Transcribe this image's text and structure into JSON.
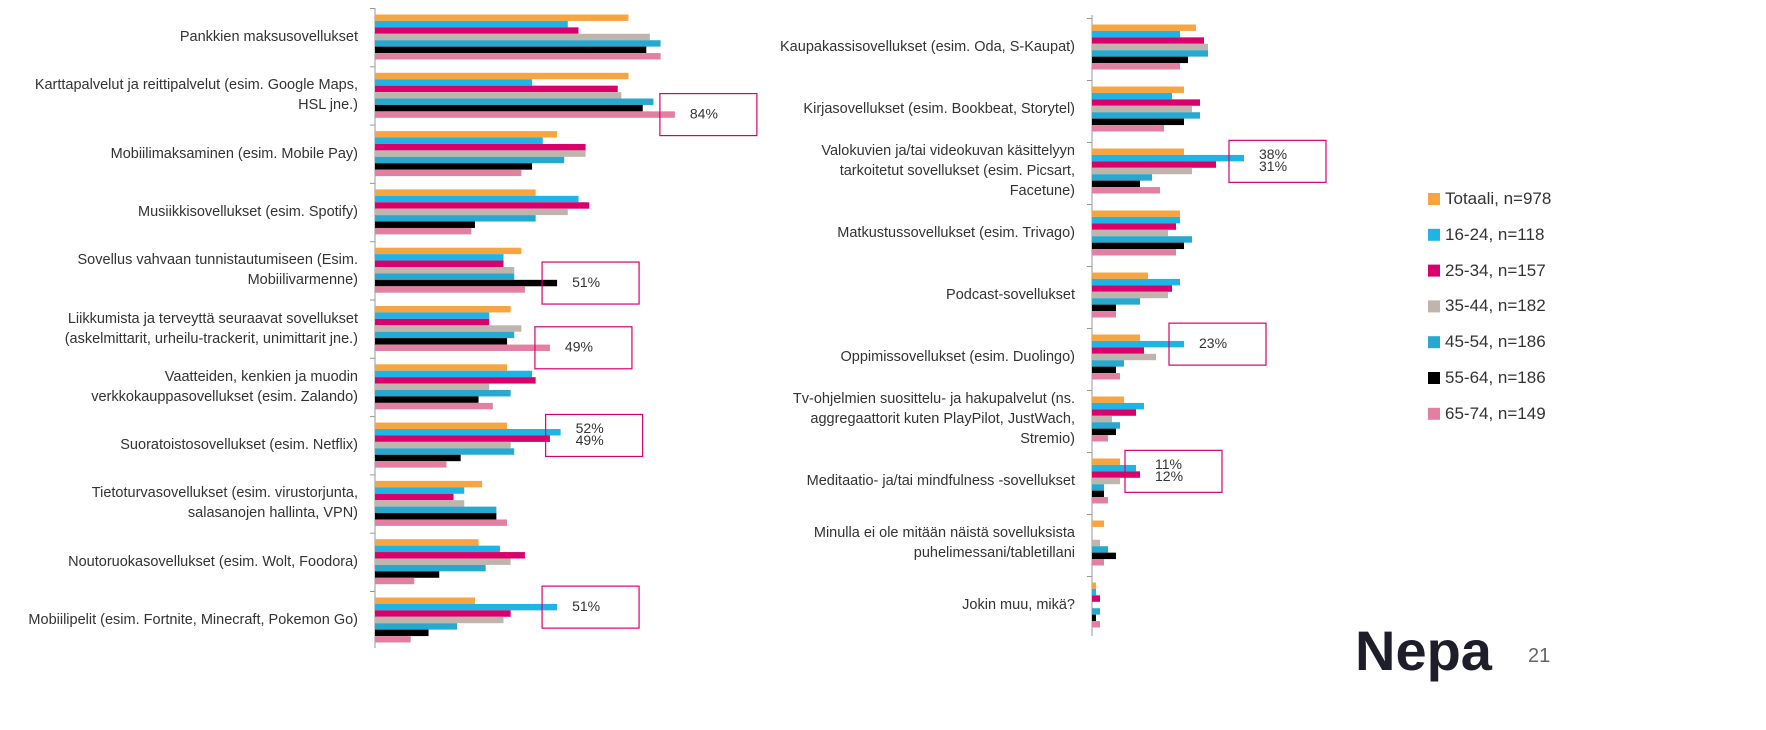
{
  "chart_data": [
    {
      "type": "bar",
      "orientation": "horizontal",
      "xlim": [
        0,
        100
      ],
      "categories": [
        "Pankkien maksusovellukset",
        "Karttapalvelut ja reittipalvelut (esim. Google Maps,\nHSL jne.)",
        "Mobiilimaksaminen (esim. Mobile Pay)",
        "Musiikkisovellukset (esim. Spotify)",
        "Sovellus vahvaan tunnistautumiseen (Esim.\nMobiilivarmenne)",
        "Liikkumista ja terveyttä seuraavat sovellukset\n(askelmittarit, urheilu-trackerit, unimittarit jne.)",
        "Vaatteiden, kenkien ja muodin\nverkkokauppasovellukset (esim. Zalando)",
        "Suoratoistosovellukset (esim. Netflix)",
        "Tietoturvasovellukset (esim. virustorjunta,\nsalasanojen hallinta, VPN)",
        "Noutoruokasovellukset (esim. Wolt, Foodora)",
        "Mobiilipelit (esim. Fortnite, Minecraft, Pokemon Go)"
      ],
      "series": [
        {
          "name": "Totaali, n=978",
          "color": "#f7a541",
          "values": [
            71,
            71,
            51,
            45,
            41,
            38,
            37,
            37,
            30,
            29,
            28
          ]
        },
        {
          "name": "16-24, n=118",
          "color": "#1fb4e6",
          "values": [
            54,
            44,
            47,
            57,
            36,
            32,
            44,
            52,
            25,
            35,
            51
          ],
          "value_labels": [
            null,
            null,
            null,
            null,
            null,
            null,
            null,
            "52%",
            null,
            null,
            "51%"
          ]
        },
        {
          "name": "25-34, n=157",
          "color": "#d9006c",
          "values": [
            57,
            68,
            59,
            60,
            36,
            32,
            45,
            49,
            22,
            42,
            38
          ],
          "value_labels": [
            null,
            null,
            null,
            null,
            null,
            null,
            null,
            "49%",
            null,
            null,
            null
          ]
        },
        {
          "name": "35-44, n=182",
          "color": "#bfb5ac",
          "values": [
            77,
            69,
            59,
            54,
            39,
            41,
            32,
            38,
            25,
            38,
            36
          ]
        },
        {
          "name": "45-54, n=186",
          "color": "#27a9cf",
          "values": [
            80,
            78,
            53,
            45,
            39,
            39,
            38,
            39,
            34,
            31,
            23
          ]
        },
        {
          "name": "55-64, n=186",
          "color": "#000000",
          "values": [
            76,
            75,
            44,
            28,
            51,
            37,
            29,
            24,
            34,
            18,
            15
          ],
          "value_labels": [
            null,
            null,
            null,
            null,
            "51%",
            null,
            null,
            null,
            null,
            null,
            null
          ]
        },
        {
          "name": "65-74, n=149",
          "color": "#e27fa2",
          "values": [
            80,
            84,
            41,
            27,
            42,
            49,
            33,
            20,
            37,
            11,
            10
          ],
          "value_labels": [
            null,
            "84%",
            null,
            null,
            null,
            "49%",
            null,
            null,
            null,
            null,
            null
          ]
        }
      ]
    },
    {
      "type": "bar",
      "orientation": "horizontal",
      "xlim": [
        0,
        100
      ],
      "categories": [
        "Kaupakassisovellukset (esim. Oda, S-Kaupat)",
        "Kirjasovellukset (esim. Bookbeat, Storytel)",
        "Valokuvien ja/tai videokuvan käsittelyyn\ntarkoitetut sovellukset (esim. Picsart,\nFacetune)",
        "Matkustussovellukset (esim. Trivago)",
        "Podcast-sovellukset",
        "Oppimissovellukset (esim. Duolingo)",
        "Tv-ohjelmien suosittelu- ja hakupalvelut (ns.\naggregaattorit kuten PlayPilot, JustWach,\nStremio)",
        "Meditaatio- ja/tai mindfulness -sovellukset",
        "Minulla ei ole mitään näistä sovelluksista\npuhelimessani/tabletillani",
        "Jokin muu, mikä?"
      ],
      "series": [
        {
          "values": [
            26,
            23,
            23,
            22,
            14,
            12,
            8,
            7,
            3,
            1
          ]
        },
        {
          "values": [
            22,
            20,
            38,
            22,
            22,
            23,
            13,
            11,
            0,
            1
          ],
          "value_labels": [
            null,
            null,
            "38%",
            null,
            null,
            "23%",
            null,
            "11%",
            null,
            null
          ]
        },
        {
          "values": [
            28,
            27,
            31,
            21,
            20,
            13,
            11,
            12,
            0,
            2
          ],
          "value_labels": [
            null,
            null,
            "31%",
            null,
            null,
            null,
            null,
            "12%",
            null,
            null
          ]
        },
        {
          "values": [
            29,
            25,
            25,
            19,
            19,
            16,
            5,
            7,
            2,
            0
          ]
        },
        {
          "values": [
            29,
            27,
            15,
            25,
            12,
            8,
            7,
            3,
            4,
            2
          ]
        },
        {
          "values": [
            24,
            23,
            12,
            23,
            6,
            6,
            6,
            3,
            6,
            1
          ]
        },
        {
          "values": [
            22,
            18,
            17,
            21,
            6,
            7,
            4,
            4,
            3,
            2
          ]
        }
      ]
    }
  ],
  "legend": {
    "position": "right"
  },
  "footer": {
    "logo": "Nepa",
    "page": "21"
  }
}
